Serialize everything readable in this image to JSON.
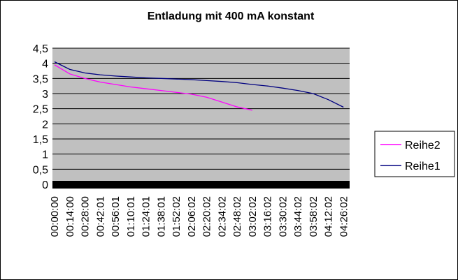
{
  "chart_data": {
    "type": "line",
    "title": "Entladung mit 400 mA konstant",
    "categories": [
      "00:00:00",
      "00:14:00",
      "00:28:00",
      "00:42:01",
      "00:56:01",
      "01:10:01",
      "01:24:01",
      "01:38:01",
      "01:52:02",
      "02:06:02",
      "02:20:02",
      "02:34:02",
      "02:48:02",
      "03:02:02",
      "03:16:02",
      "03:30:02",
      "03:44:02",
      "03:58:02",
      "04:12:02",
      "04:26:02"
    ],
    "series": [
      {
        "name": "Reihe2",
        "color": "#ff00ff",
        "values": [
          3.95,
          3.65,
          3.5,
          3.38,
          3.3,
          3.22,
          3.16,
          3.1,
          3.04,
          2.98,
          2.88,
          2.72,
          2.56,
          2.45,
          null,
          null,
          null,
          null,
          null,
          null
        ]
      },
      {
        "name": "Reihe1",
        "color": "#000080",
        "values": [
          4.05,
          3.8,
          3.68,
          3.62,
          3.58,
          3.55,
          3.52,
          3.5,
          3.48,
          3.46,
          3.43,
          3.4,
          3.36,
          3.3,
          3.25,
          3.18,
          3.1,
          3.0,
          2.8,
          2.55
        ]
      }
    ],
    "ylim": [
      0,
      4.5
    ],
    "yticks": [
      0,
      {
        "value": 0.5,
        "label": "0,5"
      },
      1,
      {
        "value": 1.5,
        "label": "1,5"
      },
      2,
      {
        "value": 2.5,
        "label": "2,5"
      },
      3,
      {
        "value": 3.5,
        "label": "3,5"
      },
      4,
      {
        "value": 4.5,
        "label": "4,5"
      }
    ],
    "grid": true,
    "legend": "right"
  }
}
